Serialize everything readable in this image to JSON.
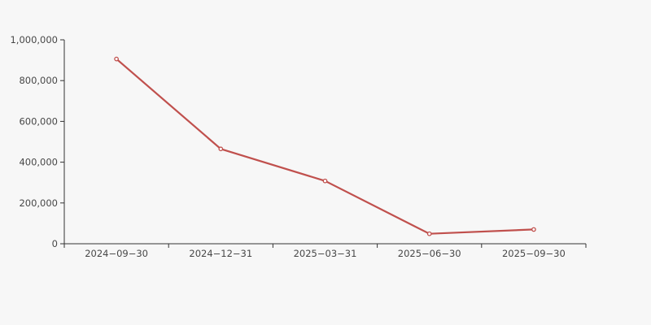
{
  "chart_data": {
    "type": "line",
    "title": "",
    "categories": [
      "2024−09−30",
      "2024−12−31",
      "2025−03−31",
      "2025−06−30",
      "2025−09−30"
    ],
    "series": [
      {
        "name": "value",
        "values": [
          906000,
          465000,
          308000,
          49000,
          70000
        ]
      }
    ],
    "xlabel": "",
    "ylabel": "",
    "ylim": [
      0,
      1000000
    ],
    "y_tick_interval": 200000,
    "y_tick_labels": [
      "0",
      "200,000",
      "400,000",
      "600,000",
      "800,000",
      "1,000,000"
    ],
    "y_tick_values": [
      0,
      200000,
      400000,
      600000,
      800000,
      1000000
    ],
    "grid": false,
    "legend": false,
    "marker_style": "open-circle",
    "colors": {
      "line": "#c0504d",
      "marker_fill": "#ffffff",
      "axis": "#333333",
      "tick": "#333333",
      "label": "#474747",
      "background": "#f7f7f7"
    }
  }
}
